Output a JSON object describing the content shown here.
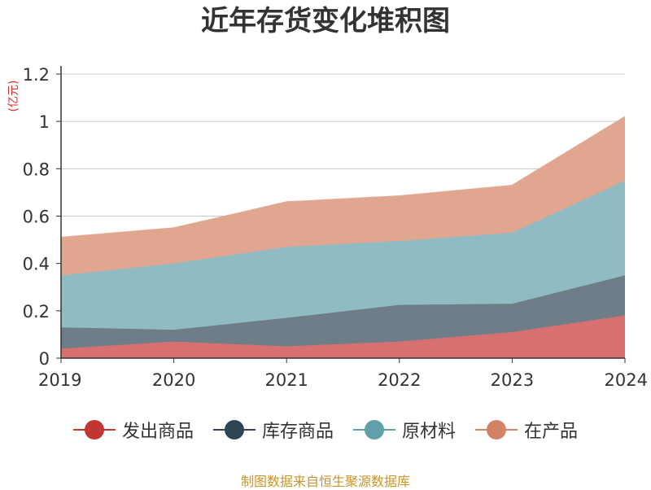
{
  "chart_data": {
    "type": "area",
    "title": "近年存货变化堆积图",
    "unit_label": "(亿元)",
    "source_note": "制图数据来自恒生聚源数据库",
    "x": [
      "2019",
      "2020",
      "2021",
      "2022",
      "2023",
      "2024"
    ],
    "ylim": [
      0,
      1.2
    ],
    "yticks": [
      "0",
      "0.2",
      "0.4",
      "0.6",
      "0.8",
      "1",
      "1.2"
    ],
    "stacked": true,
    "grid": true,
    "legend_position": "bottom",
    "series": [
      {
        "name": "发出商品",
        "color": "#c23531",
        "fill": "#d77070",
        "values": [
          0.04,
          0.07,
          0.05,
          0.07,
          0.11,
          0.18
        ]
      },
      {
        "name": "库存商品",
        "color": "#2f4554",
        "fill": "#6e7d87",
        "values": [
          0.09,
          0.05,
          0.12,
          0.155,
          0.12,
          0.17
        ]
      },
      {
        "name": "原材料",
        "color": "#61a0a8",
        "fill": "#90bbc2",
        "values": [
          0.22,
          0.28,
          0.3,
          0.27,
          0.3,
          0.4
        ]
      },
      {
        "name": "在产品",
        "color": "#d48265",
        "fill": "#e1a690",
        "values": [
          0.16,
          0.15,
          0.19,
          0.19,
          0.2,
          0.27
        ]
      }
    ]
  }
}
